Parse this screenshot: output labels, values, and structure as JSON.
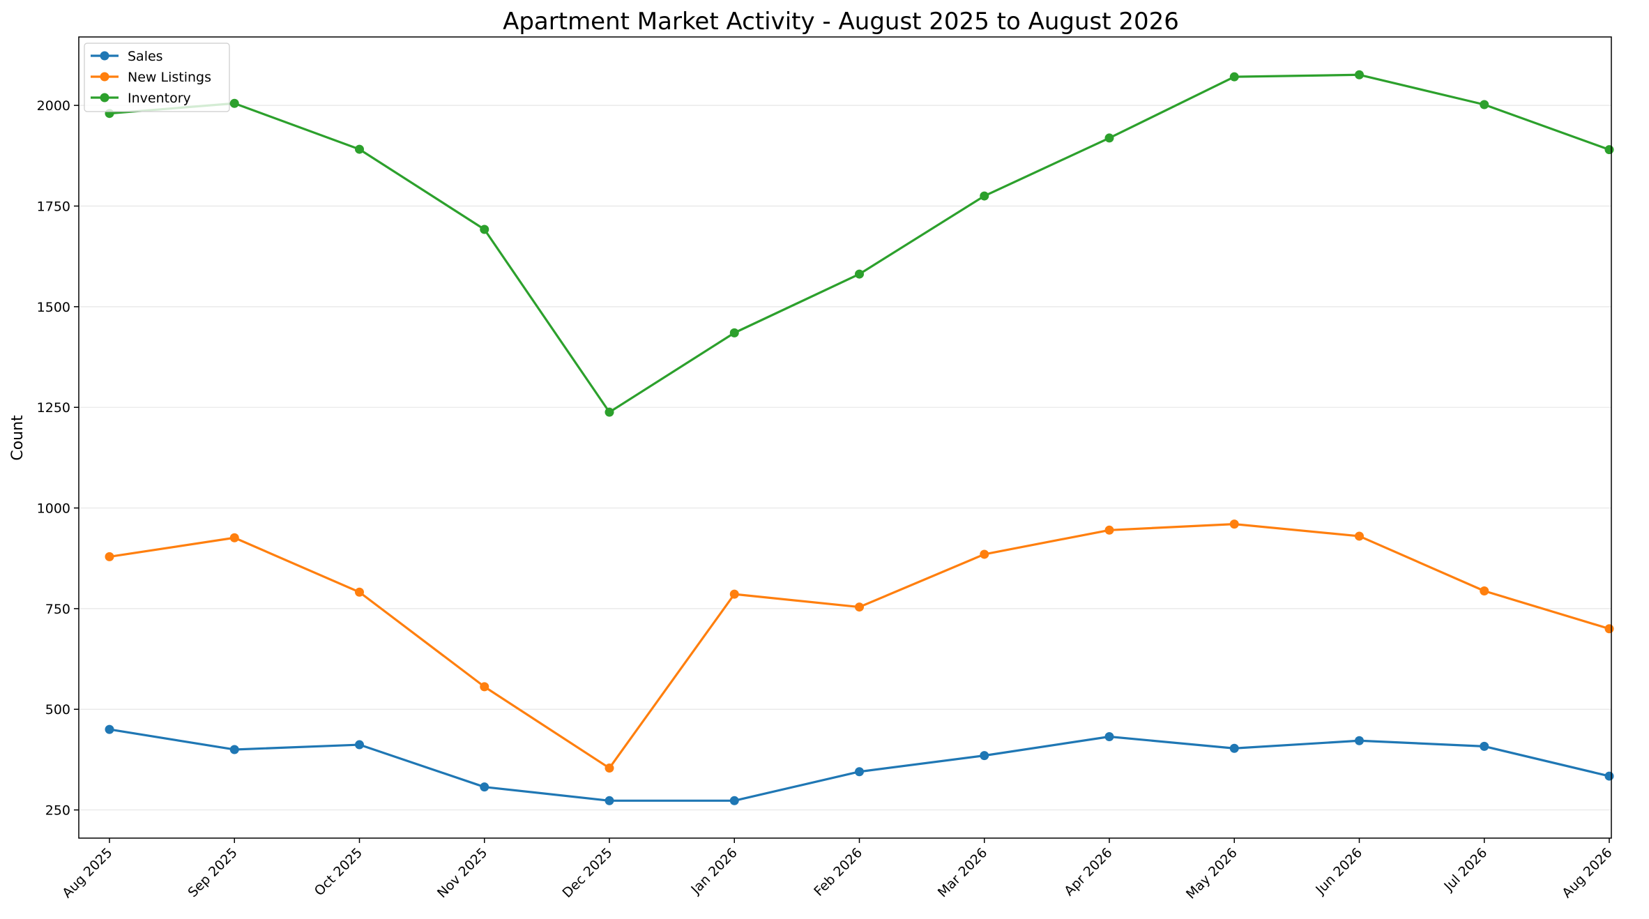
{
  "chart_data": {
    "type": "line",
    "title": "Apartment Market Activity - August 2025 to August 2026",
    "xlabel": "",
    "ylabel": "Count",
    "categories": [
      "Aug 2025",
      "Sep 2025",
      "Oct 2025",
      "Nov 2025",
      "Dec 2025",
      "Jan 2026",
      "Feb 2026",
      "Mar 2026",
      "Apr 2026",
      "May 2026",
      "Jun 2026",
      "Jul 2026",
      "Aug 2026"
    ],
    "ylim": [
      180,
      2170
    ],
    "yticks": [
      250,
      500,
      750,
      1000,
      1250,
      1500,
      1750,
      2000
    ],
    "grid": "horizontal",
    "legend_position": "upper-left",
    "series": [
      {
        "name": "Sales",
        "color": "#1f77b4",
        "values": [
          450,
          400,
          412,
          307,
          273,
          273,
          345,
          385,
          432,
          403,
          422,
          408,
          334
        ]
      },
      {
        "name": "New Listings",
        "color": "#ff7f0e",
        "values": [
          879,
          926,
          791,
          556,
          354,
          786,
          754,
          885,
          945,
          960,
          930,
          794,
          700
        ]
      },
      {
        "name": "Inventory",
        "color": "#2ca02c",
        "values": [
          1980,
          2005,
          1891,
          1692,
          1238,
          1435,
          1581,
          1775,
          1919,
          2071,
          2076,
          2002,
          1890
        ]
      }
    ]
  }
}
